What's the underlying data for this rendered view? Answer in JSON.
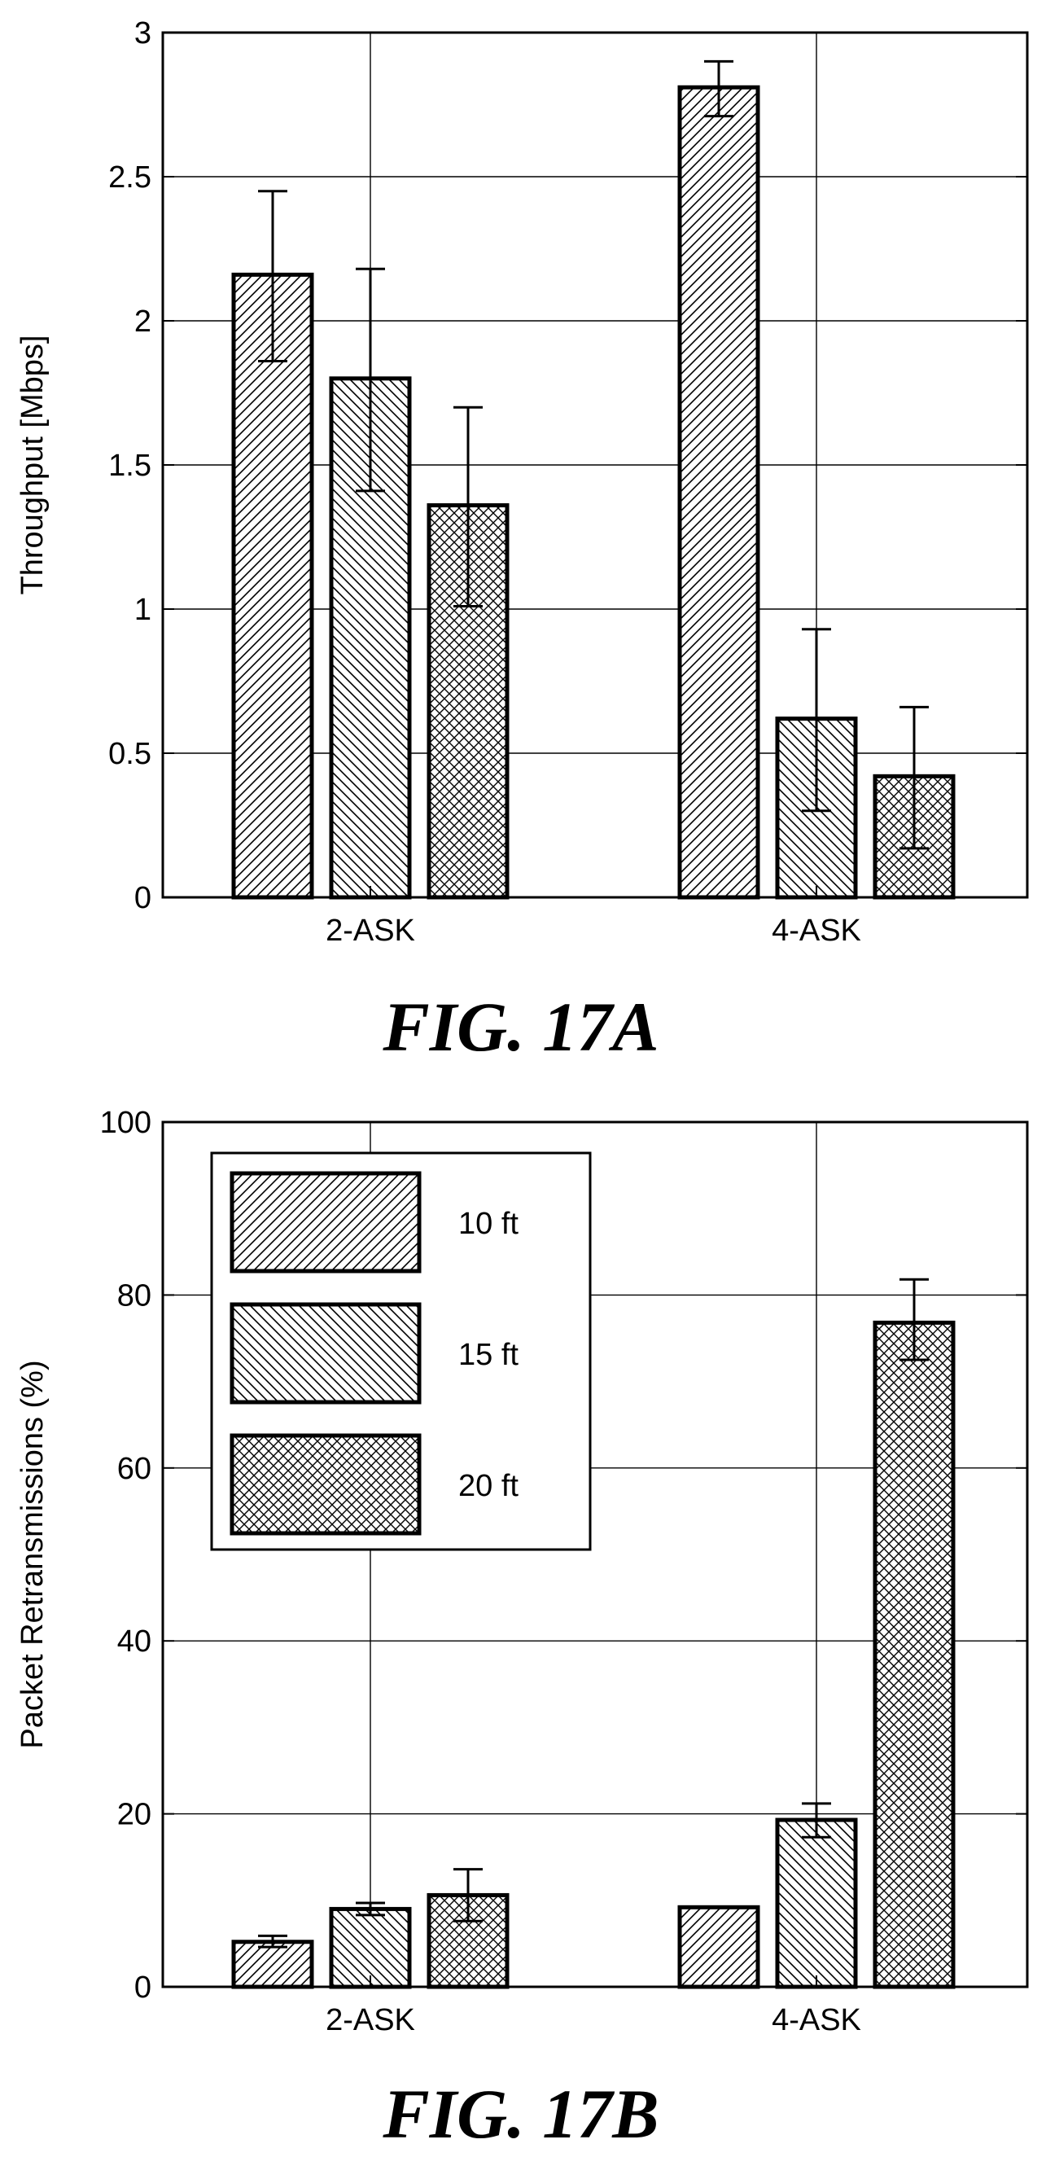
{
  "chart_data": [
    {
      "type": "bar",
      "caption": "FIG. 17A",
      "categories": [
        "2-ASK",
        "4-ASK"
      ],
      "series": [
        {
          "values": [
            2.16,
            2.81
          ],
          "error_low": [
            1.86,
            2.71
          ],
          "error_high": [
            2.45,
            2.9
          ],
          "hatch": "diagonal-right"
        },
        {
          "values": [
            1.8,
            0.62
          ],
          "error_low": [
            1.41,
            0.3
          ],
          "error_high": [
            2.18,
            0.93
          ],
          "hatch": "diagonal-left"
        },
        {
          "values": [
            1.36,
            0.42
          ],
          "error_low": [
            1.01,
            0.17
          ],
          "error_high": [
            1.7,
            0.66
          ],
          "hatch": "crosshatch"
        }
      ],
      "ylabel": "Throughput [Mbps]",
      "ylim": [
        0,
        3
      ],
      "yticks": [
        "0",
        "0.5",
        "1",
        "1.5",
        "2",
        "2.5",
        "3"
      ],
      "grid": true
    },
    {
      "type": "bar",
      "caption": "FIG. 17B",
      "categories": [
        "2-ASK",
        "4-ASK"
      ],
      "series": [
        {
          "name": "10 ft",
          "values": [
            5.2,
            9.2
          ],
          "error_low": [
            4.6,
            null
          ],
          "error_high": [
            5.9,
            null
          ],
          "hatch": "diagonal-right"
        },
        {
          "name": "15 ft",
          "values": [
            9.0,
            19.3
          ],
          "error_low": [
            8.3,
            17.3
          ],
          "error_high": [
            9.7,
            21.2
          ],
          "hatch": "diagonal-left"
        },
        {
          "name": "20 ft",
          "values": [
            10.6,
            76.8
          ],
          "error_low": [
            7.6,
            72.5
          ],
          "error_high": [
            13.6,
            81.8
          ],
          "hatch": "crosshatch"
        }
      ],
      "ylabel": "Packet Retransmissions (%)",
      "ylim": [
        0,
        100
      ],
      "yticks": [
        "0",
        "20",
        "40",
        "60",
        "80",
        "100"
      ],
      "grid": true,
      "legend": {
        "position": "top-left"
      }
    }
  ]
}
